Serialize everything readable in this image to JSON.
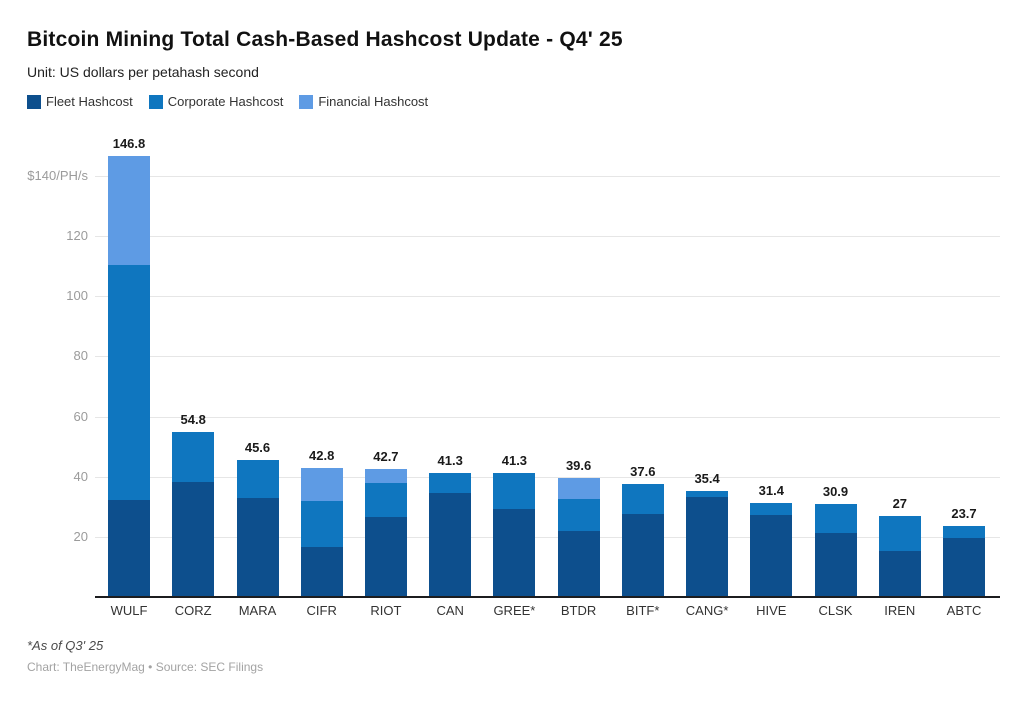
{
  "header": {
    "title": "Bitcoin Mining Total Cash-Based Hashcost Update - Q4' 25",
    "subtitle": "Unit: US dollars per petahash second"
  },
  "legend": [
    {
      "label": "Fleet Hashcost",
      "color": "#0d4f8d"
    },
    {
      "label": "Corporate Hashcost",
      "color": "#0f76bf"
    },
    {
      "label": "Financial Hashcost",
      "color": "#5e9be4"
    }
  ],
  "chart_data": {
    "type": "bar",
    "stacked": true,
    "title": "Bitcoin Mining Total Cash-Based Hashcost Update - Q4' 25",
    "unit": "US dollars per petahash second",
    "categories": [
      "WULF",
      "CORZ",
      "MARA",
      "CIFR",
      "RIOT",
      "CAN",
      "GREE*",
      "BTDR",
      "BITF*",
      "CANG*",
      "HIVE",
      "CLSK",
      "IREN",
      "ABTC"
    ],
    "series": [
      {
        "name": "Fleet Hashcost",
        "color": "#0d4f8d",
        "values": [
          32.3,
          38.3,
          33.0,
          16.7,
          26.7,
          34.6,
          29.4,
          22.0,
          27.6,
          33.3,
          27.4,
          21.4,
          15.3,
          19.5
        ]
      },
      {
        "name": "Corporate Hashcost",
        "color": "#0f76bf",
        "values": [
          78.0,
          16.5,
          12.6,
          15.1,
          11.2,
          6.7,
          11.9,
          10.6,
          10.0,
          2.1,
          4.0,
          9.5,
          11.7,
          4.2
        ]
      },
      {
        "name": "Financial Hashcost",
        "color": "#5e9be4",
        "values": [
          36.5,
          0,
          0,
          11.0,
          4.8,
          0,
          0,
          7.0,
          0,
          0,
          0,
          0,
          0,
          0
        ]
      }
    ],
    "totals": [
      "146.8",
      "54.8",
      "45.6",
      "42.8",
      "42.7",
      "41.3",
      "41.3",
      "39.6",
      "37.6",
      "35.4",
      "31.4",
      "30.9",
      "27",
      "23.7"
    ],
    "y_axis": {
      "ticks": [
        {
          "value": 140,
          "label": "$140/PH/s"
        },
        {
          "value": 120,
          "label": "120"
        },
        {
          "value": 100,
          "label": "100"
        },
        {
          "value": 80,
          "label": "80"
        },
        {
          "value": 60,
          "label": "60"
        },
        {
          "value": 40,
          "label": "40"
        },
        {
          "value": 20,
          "label": "20"
        }
      ],
      "ylim": [
        0,
        148
      ]
    },
    "grid": true,
    "legend_position": "top-left"
  },
  "footer": {
    "note": "*As of Q3' 25",
    "credit": "Chart: TheEnergyMag • Source: SEC Filings"
  }
}
